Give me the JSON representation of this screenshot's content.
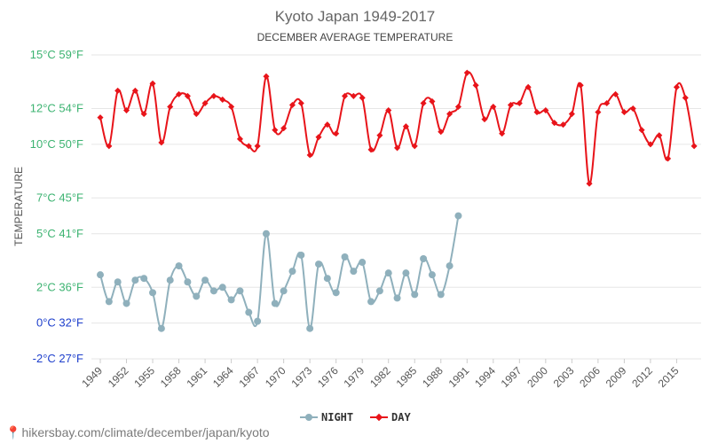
{
  "chart_data": {
    "type": "line",
    "title": "Kyoto Japan 1949-2017",
    "subtitle": "DECEMBER AVERAGE TEMPERATURE",
    "ylabel": "TEMPERATURE",
    "ylim": [
      -2,
      15
    ],
    "y_ticks": [
      {
        "value": 15,
        "label": "15°C 59°F",
        "color": "#3cb371"
      },
      {
        "value": 12,
        "label": "12°C 54°F",
        "color": "#3cb371"
      },
      {
        "value": 10,
        "label": "10°C 50°F",
        "color": "#3cb371"
      },
      {
        "value": 7,
        "label": "7°C 45°F",
        "color": "#3cb371"
      },
      {
        "value": 5,
        "label": "5°C 41°F",
        "color": "#3cb371"
      },
      {
        "value": 2,
        "label": "2°C 36°F",
        "color": "#3cb371"
      },
      {
        "value": 0,
        "label": "0°C 32°F",
        "color": "#1e3fcc"
      },
      {
        "value": -2,
        "label": "-2°C 27°F",
        "color": "#1e3fcc"
      }
    ],
    "x_tick_labels": [
      "1949",
      "1952",
      "1955",
      "1958",
      "1961",
      "1964",
      "1967",
      "1970",
      "1973",
      "1976",
      "1979",
      "1982",
      "1985",
      "1988",
      "1991",
      "1994",
      "1997",
      "2000",
      "2003",
      "2006",
      "2009",
      "2012",
      "2015"
    ],
    "xlim": [
      1949,
      2017
    ],
    "grid": true,
    "legend_position": "bottom",
    "series": [
      {
        "name": "NIGHT",
        "color": "#8fb0bc",
        "start_year": 1949,
        "values": [
          2.7,
          1.2,
          2.3,
          1.1,
          2.4,
          2.5,
          1.7,
          -0.3,
          2.4,
          3.2,
          2.3,
          1.5,
          2.4,
          1.8,
          2.0,
          1.3,
          1.8,
          0.6,
          0.1,
          5.0,
          1.1,
          1.8,
          2.9,
          3.8,
          -0.3,
          3.3,
          2.5,
          1.7,
          3.7,
          2.9,
          3.4,
          1.2,
          1.8,
          2.8,
          1.4,
          2.8,
          1.6,
          3.6,
          2.7,
          1.6,
          3.2,
          6.0
        ]
      },
      {
        "name": "DAY",
        "color": "#e8141a",
        "start_year": 1949,
        "values": [
          11.5,
          9.9,
          13.0,
          11.9,
          13.0,
          11.7,
          13.4,
          10.1,
          12.1,
          12.8,
          12.7,
          11.7,
          12.3,
          12.7,
          12.5,
          12.1,
          10.3,
          9.9,
          9.9,
          13.8,
          10.8,
          10.9,
          12.2,
          12.3,
          9.4,
          10.4,
          11.1,
          10.6,
          12.7,
          12.7,
          12.6,
          9.7,
          10.5,
          11.9,
          9.8,
          11.0,
          9.9,
          12.3,
          12.4,
          10.7,
          11.7,
          12.1,
          14.0,
          13.3,
          11.4,
          12.1,
          10.6,
          12.2,
          12.3,
          13.2,
          11.8,
          11.9,
          11.2,
          11.1,
          11.7,
          13.3,
          7.8,
          11.8,
          12.3,
          12.8,
          11.8,
          12.0,
          10.8,
          10.0,
          10.5,
          9.2,
          13.2,
          12.6,
          9.9
        ]
      }
    ]
  },
  "source_url": "hikersbay.com/climate/december/japan/kyoto"
}
